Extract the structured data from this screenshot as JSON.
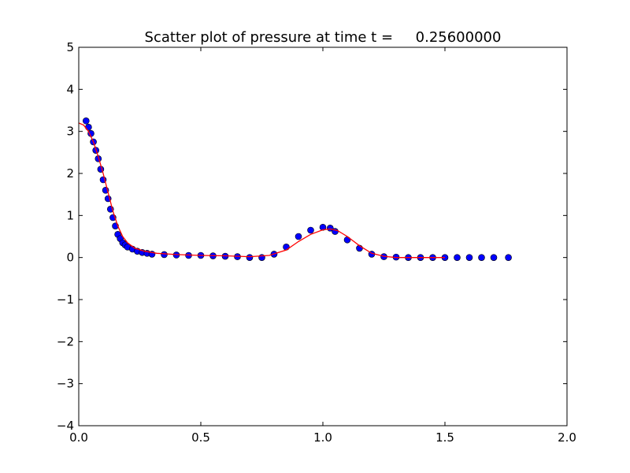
{
  "chart_data": {
    "type": "scatter",
    "title": "Scatter plot of pressure at time t =     0.25600000",
    "xlabel": "",
    "ylabel": "",
    "xlim": [
      0.0,
      2.0
    ],
    "ylim": [
      -4,
      5
    ],
    "x_ticks": [
      "0.0",
      "0.5",
      "1.0",
      "1.5",
      "2.0"
    ],
    "y_ticks": [
      "5",
      "4",
      "3",
      "2",
      "1",
      "0",
      "−1",
      "−2",
      "−3",
      "−4"
    ],
    "grid": false,
    "legend": "none",
    "colors": {
      "scatter": "#0000ff",
      "scatter_edge": "#000000",
      "line": "#ff0000"
    },
    "series": [
      {
        "kind": "scatter",
        "x": [
          0.03,
          0.04,
          0.05,
          0.06,
          0.07,
          0.08,
          0.09,
          0.1,
          0.11,
          0.12,
          0.13,
          0.14,
          0.15,
          0.16,
          0.17,
          0.18,
          0.19,
          0.2,
          0.22,
          0.24,
          0.26,
          0.28,
          0.3,
          0.35,
          0.4,
          0.45,
          0.5,
          0.55,
          0.6,
          0.65,
          0.7,
          0.75,
          0.8,
          0.85,
          0.9,
          0.95,
          1.0,
          1.03,
          1.05,
          1.1,
          1.15,
          1.2,
          1.25,
          1.3,
          1.35,
          1.4,
          1.45,
          1.5,
          1.55,
          1.6,
          1.65,
          1.7,
          1.76
        ],
        "y": [
          3.25,
          3.1,
          2.95,
          2.75,
          2.55,
          2.35,
          2.1,
          1.85,
          1.6,
          1.4,
          1.15,
          0.95,
          0.75,
          0.55,
          0.45,
          0.35,
          0.3,
          0.25,
          0.2,
          0.15,
          0.12,
          0.1,
          0.08,
          0.07,
          0.06,
          0.05,
          0.05,
          0.04,
          0.03,
          0.02,
          0.0,
          0.0,
          0.08,
          0.25,
          0.5,
          0.65,
          0.72,
          0.7,
          0.62,
          0.42,
          0.22,
          0.08,
          0.02,
          0.01,
          0.0,
          0.0,
          0.0,
          0.0,
          0.0,
          0.0,
          0.0,
          0.0,
          0.0
        ]
      },
      {
        "kind": "line",
        "x": [
          0.0,
          0.02,
          0.04,
          0.06,
          0.08,
          0.1,
          0.12,
          0.14,
          0.16,
          0.18,
          0.2,
          0.23,
          0.27,
          0.32,
          0.4,
          0.5,
          0.6,
          0.7,
          0.78,
          0.85,
          0.9,
          0.95,
          1.0,
          1.03,
          1.06,
          1.1,
          1.15,
          1.2,
          1.25,
          1.3,
          1.4,
          1.5
        ],
        "y": [
          3.2,
          3.15,
          3.0,
          2.75,
          2.4,
          2.0,
          1.55,
          1.1,
          0.75,
          0.5,
          0.35,
          0.22,
          0.15,
          0.1,
          0.07,
          0.05,
          0.04,
          0.02,
          0.05,
          0.18,
          0.38,
          0.55,
          0.66,
          0.68,
          0.64,
          0.5,
          0.28,
          0.1,
          0.03,
          0.0,
          0.0,
          0.0
        ]
      }
    ]
  }
}
